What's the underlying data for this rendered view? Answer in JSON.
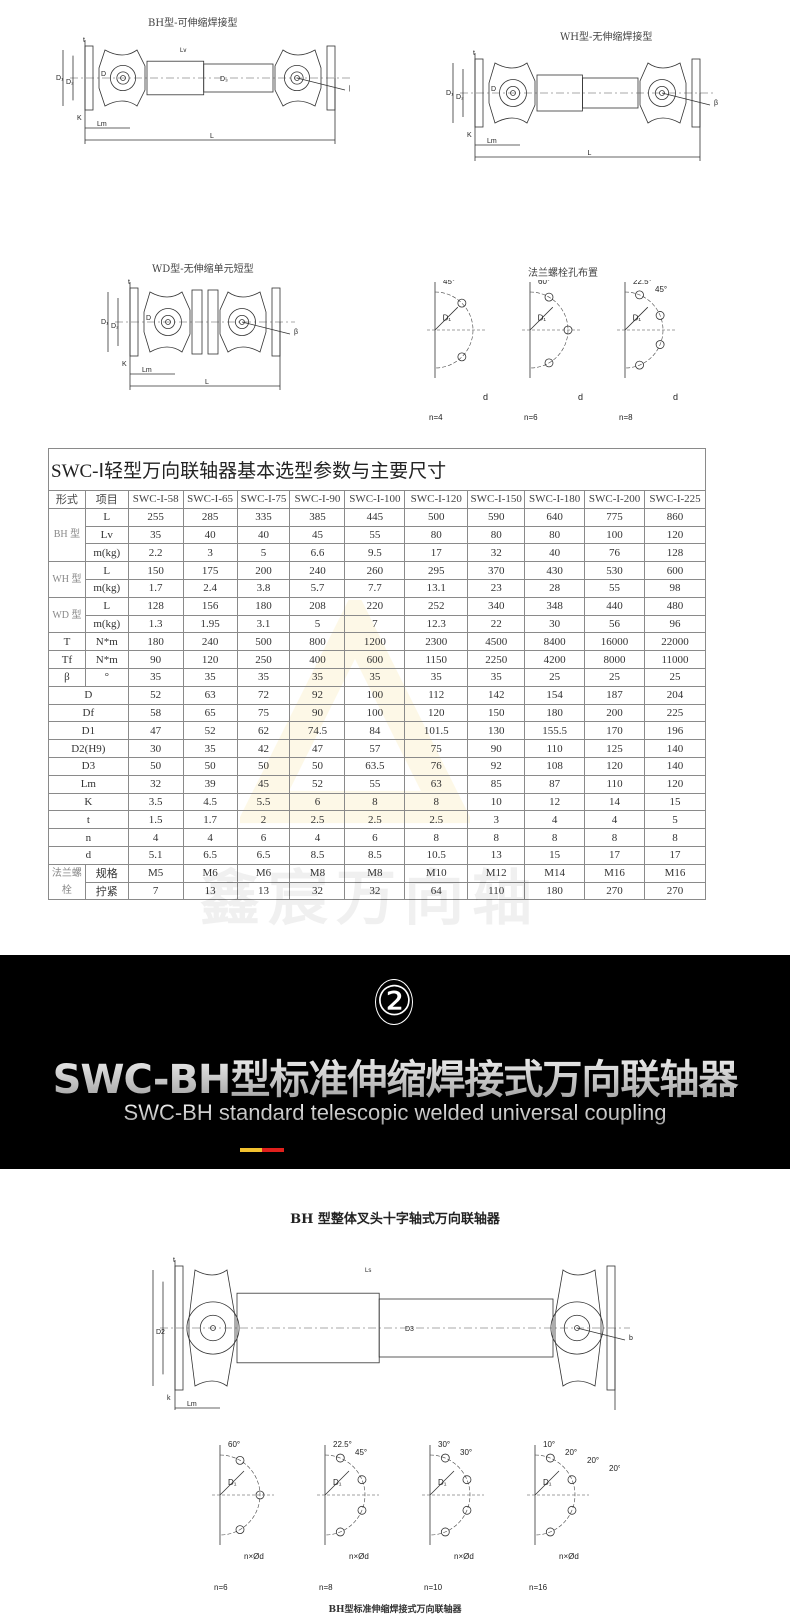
{
  "diagrams": {
    "bh": {
      "caption": "BH型-可伸缩焊接型",
      "labels": {
        "L": "L",
        "Lm": "Lm",
        "Lv": "Lv",
        "D": "D",
        "D1": "D₁",
        "D2": "D₂",
        "D3": "D₃",
        "K": "K",
        "t": "t",
        "beta": "β"
      }
    },
    "wh": {
      "caption": "WH型-无伸缩焊接型",
      "labels": {
        "L": "L",
        "Lm": "Lm",
        "D": "D",
        "D1": "D₁",
        "D2": "D₂",
        "K": "K",
        "t": "t",
        "beta": "β"
      }
    },
    "wd": {
      "caption": "WD型-无伸缩单元短型",
      "labels": {
        "L": "L",
        "Lm": "Lm",
        "D": "D",
        "D1": "D₁",
        "D2": "D₂",
        "K": "K",
        "t": "t",
        "beta": "β"
      }
    },
    "flange": {
      "caption": "法兰螺栓孔布置",
      "items": [
        {
          "n": "n=4",
          "angles": [
            "45°"
          ],
          "D1": "D₁",
          "d": "d"
        },
        {
          "n": "n=6",
          "angles": [
            "60°"
          ],
          "D1": "D₁",
          "d": "d"
        },
        {
          "n": "n=8",
          "angles": [
            "22.5°",
            "45°"
          ],
          "D1": "D₁",
          "d": "d"
        }
      ]
    }
  },
  "table": {
    "title": "SWC-Ⅰ轻型万向联轴器基本选型参数与主要尺寸",
    "header": [
      "形式",
      "项目",
      "SWC-I-58",
      "SWC-I-65",
      "SWC-I-75",
      "SWC-I-90",
      "SWC-I-100",
      "SWC-I-120",
      "SWC-I-150",
      "SWC-I-180",
      "SWC-I-200",
      "SWC-I-225"
    ],
    "rows": [
      {
        "group": "BH 型",
        "span": 3,
        "item": "L",
        "values": [
          "255",
          "285",
          "335",
          "385",
          "445",
          "500",
          "590",
          "640",
          "775",
          "860"
        ]
      },
      {
        "item": "Lv",
        "values": [
          "35",
          "40",
          "40",
          "45",
          "55",
          "80",
          "80",
          "80",
          "100",
          "120"
        ]
      },
      {
        "item": "m(kg)",
        "values": [
          "2.2",
          "3",
          "5",
          "6.6",
          "9.5",
          "17",
          "32",
          "40",
          "76",
          "128"
        ]
      },
      {
        "group": "WH 型",
        "span": 2,
        "item": "L",
        "values": [
          "150",
          "175",
          "200",
          "240",
          "260",
          "295",
          "370",
          "430",
          "530",
          "600"
        ]
      },
      {
        "item": "m(kg)",
        "values": [
          "1.7",
          "2.4",
          "3.8",
          "5.7",
          "7.7",
          "13.1",
          "23",
          "28",
          "55",
          "98"
        ]
      },
      {
        "group": "WD 型",
        "span": 2,
        "item": "L",
        "values": [
          "128",
          "156",
          "180",
          "208",
          "220",
          "252",
          "340",
          "348",
          "440",
          "480"
        ]
      },
      {
        "item": "m(kg)",
        "values": [
          "1.3",
          "1.95",
          "3.1",
          "5",
          "7",
          "12.3",
          "22",
          "30",
          "56",
          "96"
        ]
      },
      {
        "group": "T",
        "span": 1,
        "item": "N*m",
        "values": [
          "180",
          "240",
          "500",
          "800",
          "1200",
          "2300",
          "4500",
          "8400",
          "16000",
          "22000"
        ]
      },
      {
        "group": "Tf",
        "span": 1,
        "item": "N*m",
        "values": [
          "90",
          "120",
          "250",
          "400",
          "600",
          "1150",
          "2250",
          "4200",
          "8000",
          "11000"
        ]
      },
      {
        "group": "β",
        "span": 1,
        "item": "°",
        "values": [
          "35",
          "35",
          "35",
          "35",
          "35",
          "35",
          "35",
          "25",
          "25",
          "25"
        ]
      },
      {
        "full": "D",
        "values": [
          "52",
          "63",
          "72",
          "92",
          "100",
          "112",
          "142",
          "154",
          "187",
          "204"
        ]
      },
      {
        "full": "Df",
        "values": [
          "58",
          "65",
          "75",
          "90",
          "100",
          "120",
          "150",
          "180",
          "200",
          "225"
        ]
      },
      {
        "full": "D1",
        "values": [
          "47",
          "52",
          "62",
          "74.5",
          "84",
          "101.5",
          "130",
          "155.5",
          "170",
          "196"
        ]
      },
      {
        "full": "D2(H9)",
        "values": [
          "30",
          "35",
          "42",
          "47",
          "57",
          "75",
          "90",
          "110",
          "125",
          "140"
        ]
      },
      {
        "full": "D3",
        "values": [
          "50",
          "50",
          "50",
          "50",
          "63.5",
          "76",
          "92",
          "108",
          "120",
          "140"
        ]
      },
      {
        "full": "Lm",
        "values": [
          "32",
          "39",
          "45",
          "52",
          "55",
          "63",
          "85",
          "87",
          "110",
          "120"
        ]
      },
      {
        "full": "K",
        "values": [
          "3.5",
          "4.5",
          "5.5",
          "6",
          "8",
          "8",
          "10",
          "12",
          "14",
          "15"
        ]
      },
      {
        "full": "t",
        "values": [
          "1.5",
          "1.7",
          "2",
          "2.5",
          "2.5",
          "2.5",
          "3",
          "4",
          "4",
          "5"
        ]
      },
      {
        "full": "n",
        "values": [
          "4",
          "4",
          "6",
          "4",
          "6",
          "8",
          "8",
          "8",
          "8",
          "8"
        ]
      },
      {
        "full": "d",
        "values": [
          "5.1",
          "6.5",
          "6.5",
          "8.5",
          "8.5",
          "10.5",
          "13",
          "15",
          "17",
          "17"
        ]
      },
      {
        "group": "法兰螺栓",
        "span": 2,
        "item": "规格",
        "values": [
          "M5",
          "M6",
          "M6",
          "M8",
          "M8",
          "M10",
          "M12",
          "M14",
          "M16",
          "M16"
        ]
      },
      {
        "item": "拧紧",
        "values": [
          "7",
          "13",
          "13",
          "32",
          "32",
          "64",
          "110",
          "180",
          "270",
          "270"
        ]
      }
    ],
    "watermark": "鑫宸万向轴"
  },
  "banner": {
    "number": "②",
    "title": "SWC-BH型标准伸缩焊接式万向联轴器",
    "subtitle": "SWC-BH  standard telescopic welded universal coupling",
    "accent_colors": [
      "#f2c230",
      "#e0201c"
    ]
  },
  "bh_section": {
    "caption": "BH 型整体叉头十字轴式万向联轴器",
    "labels": {
      "L": "L",
      "Lm": "Lm",
      "Ls": "Ls",
      "D3": "D3",
      "D2": "D2",
      "k": "k",
      "t": "t",
      "b": "b"
    },
    "flange_items": [
      {
        "n": "n=6",
        "angles": [
          "60°"
        ],
        "D1": "D₁",
        "nd": "n×Ød"
      },
      {
        "n": "n=8",
        "angles": [
          "22.5°",
          "45°"
        ],
        "D1": "D₁",
        "nd": "n×Ød"
      },
      {
        "n": "n=10",
        "angles": [
          "30°",
          "30°"
        ],
        "D1": "D₁",
        "nd": "n×Ød"
      },
      {
        "n": "n=16",
        "angles": [
          "10°",
          "20°",
          "20°",
          "20°"
        ],
        "D1": "D₁",
        "nd": "n×Ød"
      }
    ],
    "footer": "BH型标准伸缩焊接式万向联轴器"
  }
}
